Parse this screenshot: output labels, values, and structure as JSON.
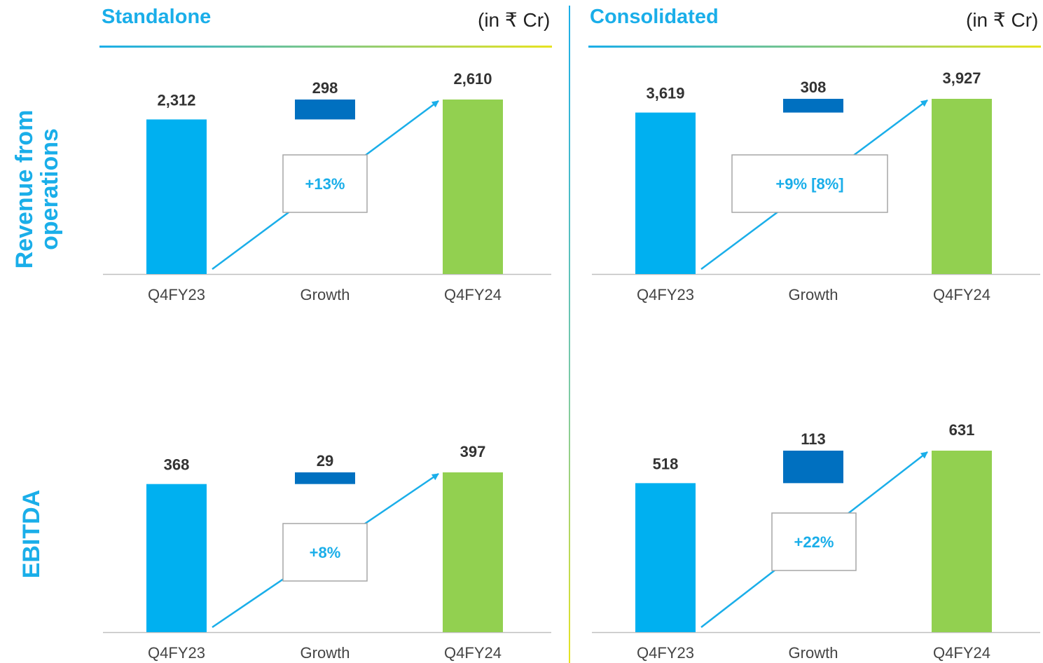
{
  "sections": [
    {
      "title": "Standalone",
      "unit": "(in ₹ Cr)"
    },
    {
      "title": "Consolidated",
      "unit": "(in ₹ Cr)"
    }
  ],
  "rows": [
    {
      "label_line1": "Revenue from",
      "label_line2": "operations"
    },
    {
      "label_line1": "EBITDA",
      "label_line2": ""
    }
  ],
  "colors": {
    "start_bar": "#00B0F0",
    "growth_bar": "#0070C0",
    "end_bar": "#92D050",
    "accent": "#1AAEE9",
    "arrow": "#1AAEE9"
  },
  "chart_data": [
    {
      "type": "bar",
      "subtype": "waterfall",
      "section": "Standalone",
      "metric": "Revenue from operations",
      "categories": [
        "Q4FY23",
        "Growth",
        "Q4FY24"
      ],
      "values": [
        2312,
        298,
        2610
      ],
      "labels": [
        "2,312",
        "298",
        "2,610"
      ],
      "growth_label": "+13%"
    },
    {
      "type": "bar",
      "subtype": "waterfall",
      "section": "Consolidated",
      "metric": "Revenue from operations",
      "categories": [
        "Q4FY23",
        "Growth",
        "Q4FY24"
      ],
      "values": [
        3619,
        308,
        3927
      ],
      "labels": [
        "3,619",
        "308",
        "3,927"
      ],
      "growth_label": "+9% [8%]"
    },
    {
      "type": "bar",
      "subtype": "waterfall",
      "section": "Standalone",
      "metric": "EBITDA",
      "categories": [
        "Q4FY23",
        "Growth",
        "Q4FY24"
      ],
      "values": [
        368,
        29,
        397
      ],
      "labels": [
        "368",
        "29",
        "397"
      ],
      "growth_label": "+8%"
    },
    {
      "type": "bar",
      "subtype": "waterfall",
      "section": "Consolidated",
      "metric": "EBITDA",
      "categories": [
        "Q4FY23",
        "Growth",
        "Q4FY24"
      ],
      "values": [
        518,
        113,
        631
      ],
      "labels": [
        "518",
        "113",
        "631"
      ],
      "growth_label": "+22%"
    }
  ]
}
